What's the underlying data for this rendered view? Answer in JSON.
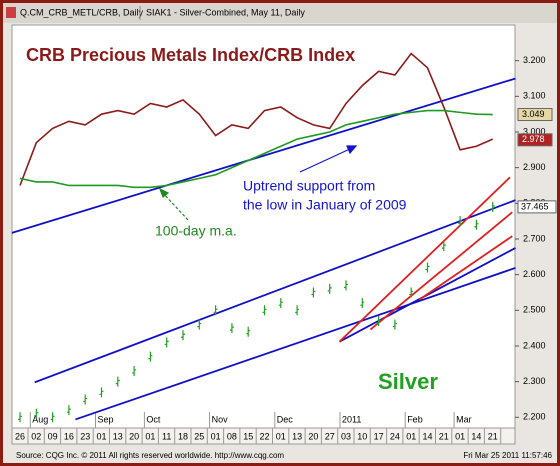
{
  "chart_data": {
    "type": "line",
    "header": [
      "Q.CM_CRB_METL/CRB, Daily",
      "SIAK1 - Silver-Combined, May 11, Daily"
    ],
    "title": "CRB Precious Metals Index/CRB Index",
    "annotations": [
      "Uptrend support from",
      "the low in January of 2009",
      "100-day m.a.",
      "Silver"
    ],
    "categories": [
      "26",
      "02",
      "09",
      "16",
      "23",
      "01",
      "13",
      "20",
      "01",
      "11",
      "18",
      "25",
      "01",
      "08",
      "15",
      "22",
      "01",
      "13",
      "20",
      "27",
      "03",
      "10",
      "17",
      "24",
      "01",
      "14",
      "21",
      "01",
      "14",
      "21"
    ],
    "months": [
      null,
      "Aug",
      null,
      null,
      null,
      "Sep",
      null,
      null,
      "Oct",
      null,
      null,
      null,
      "Nov",
      null,
      null,
      null,
      "Dec",
      null,
      null,
      null,
      "2011",
      null,
      null,
      null,
      "Feb",
      null,
      null,
      "Mar",
      null,
      null
    ],
    "series": [
      {
        "color": "#8b1a1a",
        "style": "line",
        "values": [
          2.85,
          2.97,
          3.01,
          3.03,
          3.02,
          3.05,
          3.06,
          3.05,
          3.08,
          3.07,
          3.09,
          3.05,
          2.99,
          3.02,
          3.01,
          3.06,
          3.07,
          3.04,
          3.02,
          3.01,
          3.08,
          3.13,
          3.17,
          3.16,
          3.22,
          3.18,
          3.07,
          2.95,
          2.96,
          2.98
        ]
      },
      {
        "color": "#1f9a1f",
        "style": "line",
        "values": [
          2.87,
          2.86,
          2.86,
          2.85,
          2.85,
          2.85,
          2.85,
          2.845,
          2.845,
          2.85,
          2.86,
          2.87,
          2.88,
          2.9,
          2.92,
          2.94,
          2.96,
          2.98,
          2.99,
          3.0,
          3.02,
          3.03,
          3.04,
          3.05,
          3.055,
          3.06,
          3.06,
          3.055,
          3.05,
          3.049
        ]
      },
      {
        "color": "#22a022",
        "style": "bars",
        "last_tag": "37.465",
        "values": [
          2.2,
          2.21,
          2.2,
          2.22,
          2.25,
          2.27,
          2.3,
          2.33,
          2.37,
          2.41,
          2.43,
          2.46,
          2.5,
          2.45,
          2.44,
          2.5,
          2.52,
          2.5,
          2.55,
          2.56,
          2.57,
          2.52,
          2.47,
          2.46,
          2.55,
          2.62,
          2.68,
          2.75,
          2.74,
          2.79
        ]
      }
    ],
    "trendlines": [
      {
        "color": "#1010c8",
        "points": [
          [
            -0.5,
            2.717
          ],
          [
            30.4,
            3.15
          ]
        ]
      },
      {
        "color": "#1010c8",
        "points": [
          [
            0.9,
            2.298
          ],
          [
            30.4,
            2.809
          ]
        ]
      },
      {
        "color": "#1010c8",
        "points": [
          [
            3.4,
            2.194
          ],
          [
            30.4,
            2.619
          ]
        ]
      },
      {
        "color": "#1010c8",
        "points": [
          [
            19.6,
            2.412
          ],
          [
            30.4,
            2.675
          ]
        ]
      },
      {
        "color": "#e02020",
        "points": [
          [
            19.6,
            2.412
          ],
          [
            30.06,
            2.873
          ]
        ]
      },
      {
        "color": "#e02020",
        "points": [
          [
            21.5,
            2.446
          ],
          [
            30.2,
            2.775
          ]
        ]
      },
      {
        "color": "#e02020",
        "points": [
          [
            24.5,
            2.53
          ],
          [
            30.2,
            2.708
          ]
        ]
      }
    ],
    "tags": [
      {
        "label": "3.049",
        "value": 3.049,
        "fill": "#e6d8a6",
        "text_color": "#000"
      },
      {
        "label": "2.978",
        "value": 2.978,
        "fill": "#b22222",
        "text_color": "#fff"
      }
    ],
    "ylim": [
      2.17,
      3.3
    ],
    "yticks": [
      {
        "value": 2.2,
        "label": "2.200"
      },
      {
        "value": 2.3,
        "label": "2.300"
      },
      {
        "value": 2.4,
        "label": "2.400"
      },
      {
        "value": 2.5,
        "label": "2.500"
      },
      {
        "value": 2.6,
        "label": "2.600"
      },
      {
        "value": 2.7,
        "label": "2.700"
      },
      {
        "value": 2.8,
        "label": "2.800"
      },
      {
        "value": 2.9,
        "label": "2.900"
      },
      {
        "value": 3.0,
        "label": "3.000"
      },
      {
        "value": 3.1,
        "label": "3.100"
      },
      {
        "value": 3.2,
        "label": "3.200"
      }
    ],
    "footer": [
      "Source: CQG Inc. © 2011 All rights reserved worldwide. http://www.cqg.com",
      "Fri Mar 25 2011 11:57:46"
    ]
  }
}
